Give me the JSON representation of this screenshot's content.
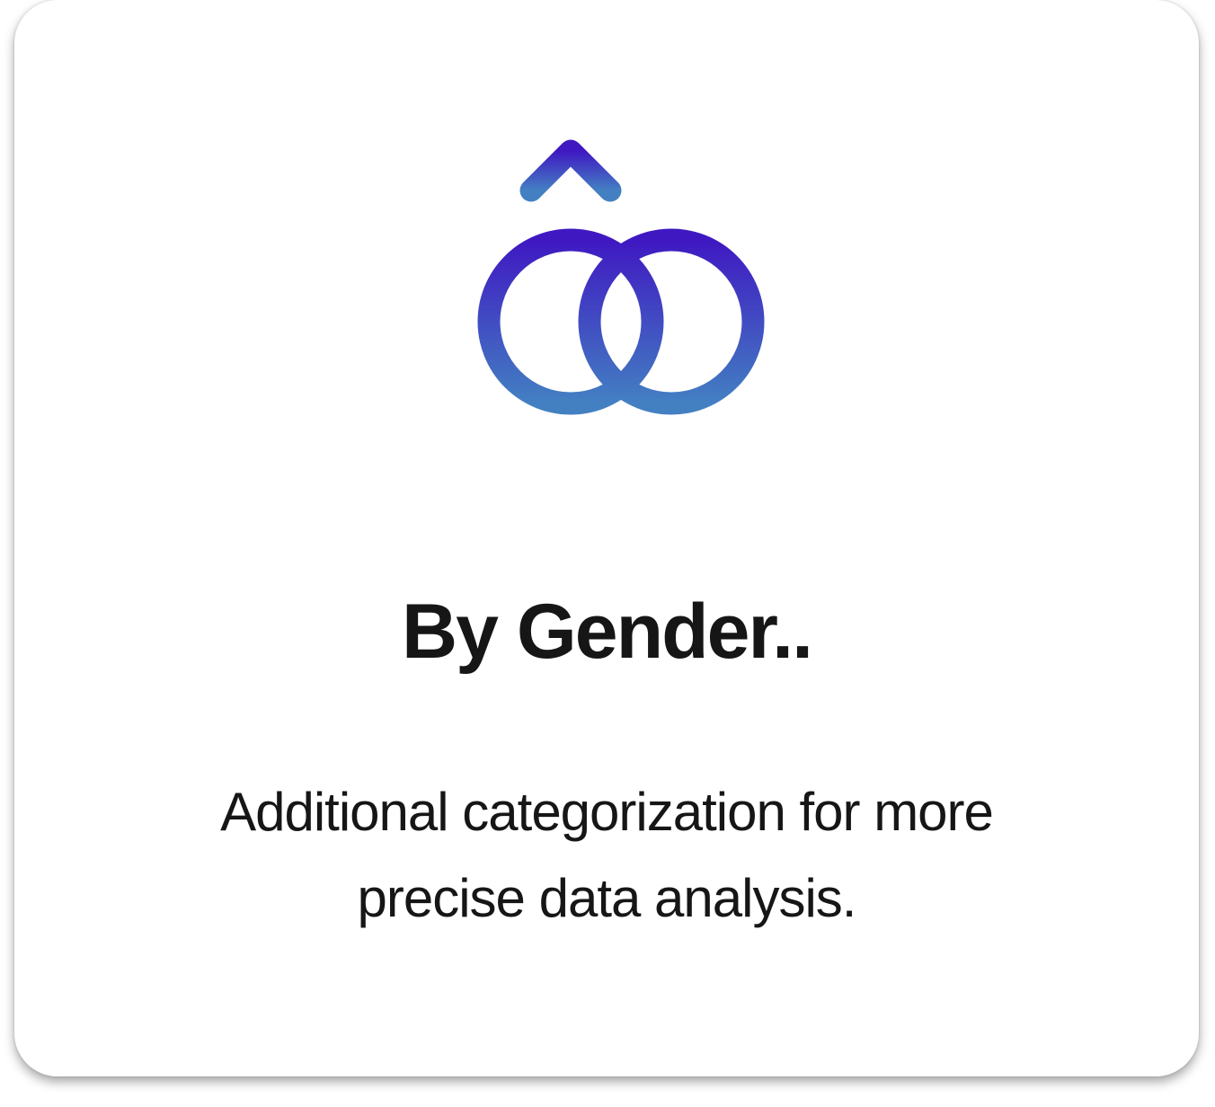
{
  "card": {
    "icon": "gender-symbols-icon",
    "title": "By Gender..",
    "description": "Additional categorization for more precise data analysis.",
    "gradient_start": "#3F18C2",
    "gradient_end": "#4380C2"
  }
}
